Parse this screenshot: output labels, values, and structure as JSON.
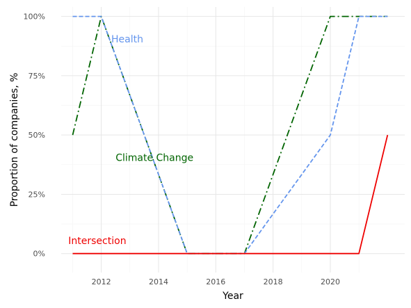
{
  "chart_data": {
    "type": "line",
    "xlabel": "Year",
    "ylabel": "Proportion of companies, %",
    "xlim": [
      2010.6,
      2022.6
    ],
    "ylim": [
      -0.08,
      1.04
    ],
    "x_ticks": [
      2012,
      2014,
      2016,
      2018,
      2020
    ],
    "x_tick_labels": [
      "2012",
      "2014",
      "2016",
      "2018",
      "2020"
    ],
    "y_ticks": [
      0,
      0.25,
      0.5,
      0.75,
      1.0
    ],
    "y_tick_labels": [
      "0%",
      "25%",
      "50%",
      "75%",
      "100%"
    ],
    "grid": true,
    "legend": "none (direct labels)",
    "series": [
      {
        "name": "Climate Change",
        "color": "#006400",
        "dash": "dash-dot",
        "x": [
          2011,
          2012,
          2013,
          2014,
          2015,
          2016,
          2017,
          2018,
          2019,
          2020,
          2021,
          2022
        ],
        "values": [
          0.5,
          1.0,
          0.667,
          0.333,
          0.0,
          0.0,
          0.0,
          0.333,
          0.667,
          1.0,
          1.0,
          1.0
        ]
      },
      {
        "name": "Health",
        "color": "#6495ED",
        "dash": "dashed",
        "x": [
          2011,
          2012,
          2013,
          2014,
          2015,
          2016,
          2017,
          2018,
          2019,
          2020,
          2021,
          2022
        ],
        "values": [
          1.0,
          1.0,
          0.667,
          0.333,
          0.0,
          0.0,
          0.0,
          0.167,
          0.333,
          0.5,
          1.0,
          1.0
        ]
      },
      {
        "name": "Intersection",
        "color": "#EE0000",
        "dash": "solid",
        "x": [
          2011,
          2012,
          2013,
          2014,
          2015,
          2016,
          2017,
          2018,
          2019,
          2020,
          2021,
          2022
        ],
        "values": [
          0.0,
          0.0,
          0.0,
          0.0,
          0.0,
          0.0,
          0.0,
          0.0,
          0.0,
          0.0,
          0.0,
          0.5
        ]
      }
    ],
    "annotations": [
      {
        "text": "Health",
        "color": "#6495ED",
        "x": 2012.35,
        "y": 0.89
      },
      {
        "text": "Climate Change",
        "color": "#006400",
        "x": 2012.5,
        "y": 0.39
      },
      {
        "text": "Intersection",
        "color": "#EE0000",
        "x": 2010.85,
        "y": 0.04
      }
    ]
  }
}
